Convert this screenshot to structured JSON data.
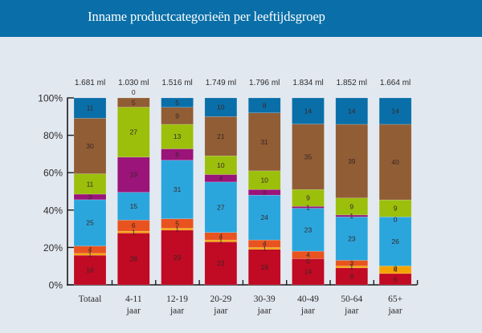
{
  "header": {
    "title": "Inname productcategorieën per leeftijdsgroep"
  },
  "colors": {
    "header_bg": "#0a6fa8",
    "page_bg": "#e2e8f0"
  },
  "chart_data": {
    "type": "bar",
    "stacked": true,
    "normalized_percent": true,
    "title": "Inname productcategorieën per leeftijdsgroep",
    "xlabel": "",
    "ylabel": "",
    "ylim": [
      0,
      100
    ],
    "yticks": [
      "0%",
      "20%",
      "40%",
      "60%",
      "80%",
      "100%"
    ],
    "grid": false,
    "legend": "none",
    "categories": [
      "Totaal",
      "4-11 jaar",
      "12-19 jaar",
      "20-29 jaar",
      "30-39 jaar",
      "40-49 jaar",
      "50-64 jaar",
      "65+ jaar"
    ],
    "category_lines": [
      [
        "Totaal"
      ],
      [
        "4-11",
        "jaar"
      ],
      [
        "12-19",
        "jaar"
      ],
      [
        "20-29",
        "jaar"
      ],
      [
        "30-39",
        "jaar"
      ],
      [
        "40-49",
        "jaar"
      ],
      [
        "50-64",
        "jaar"
      ],
      [
        "65+",
        "jaar"
      ]
    ],
    "totals": [
      "1.681 ml",
      "1.030 ml",
      "1.516 ml",
      "1.749 ml",
      "1.796 ml",
      "1.834 ml",
      "1.852 ml",
      "1.664 ml"
    ],
    "series": [
      {
        "name": "red",
        "color": "#c10a23",
        "values": [
          16,
          28,
          29,
          23,
          19,
          14,
          9,
          6
        ]
      },
      {
        "name": "yellow",
        "color": "#f5a300",
        "values": [
          1,
          1,
          1,
          1,
          1,
          0,
          1,
          4
        ]
      },
      {
        "name": "orange",
        "color": "#e8531f",
        "values": [
          4,
          6,
          5,
          4,
          4,
          4,
          3,
          0
        ]
      },
      {
        "name": "light-blue",
        "color": "#2aa6dd",
        "values": [
          25,
          15,
          31,
          27,
          24,
          23,
          23,
          26
        ]
      },
      {
        "name": "purple",
        "color": "#9a1479",
        "values": [
          3,
          19,
          6,
          4,
          3,
          1,
          1,
          0
        ]
      },
      {
        "name": "green",
        "color": "#9bbf0b",
        "values": [
          11,
          27,
          13,
          10,
          10,
          9,
          9,
          9
        ]
      },
      {
        "name": "brown",
        "color": "#915d35",
        "values": [
          30,
          5,
          9,
          21,
          31,
          35,
          39,
          40
        ]
      },
      {
        "name": "blue",
        "color": "#0a6fa8",
        "values": [
          11,
          0,
          5,
          10,
          8,
          14,
          14,
          14
        ]
      }
    ]
  }
}
